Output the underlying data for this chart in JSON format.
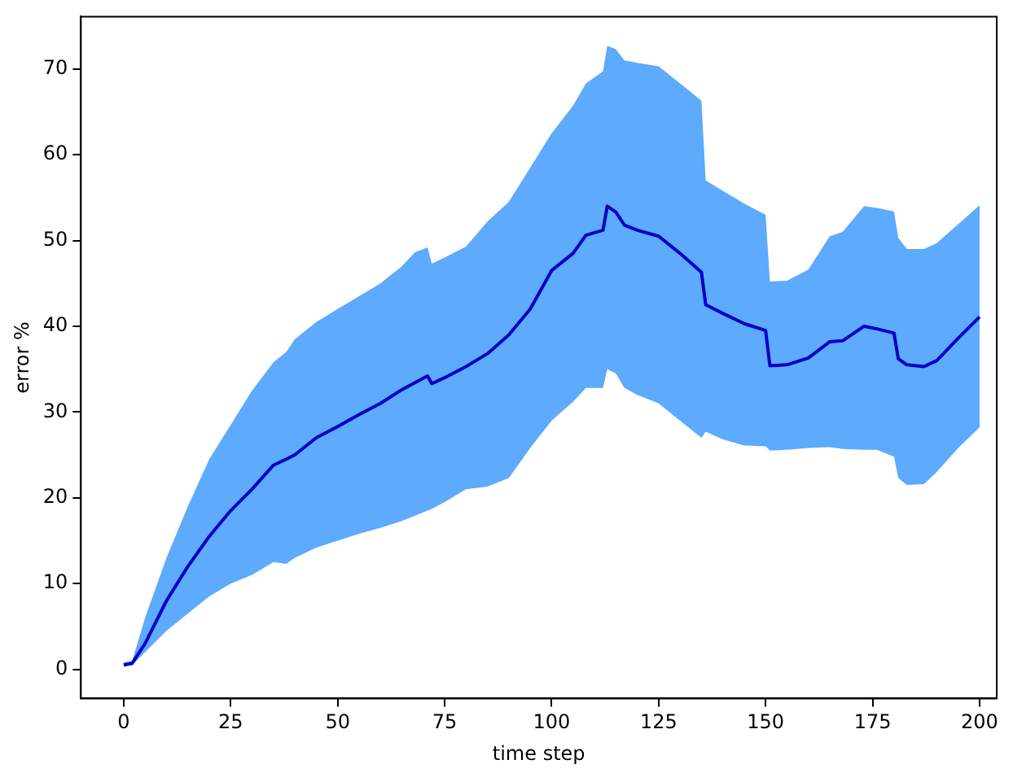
{
  "chart_data": {
    "type": "line",
    "xlabel": "time step",
    "ylabel": "error %",
    "x": [
      0,
      2,
      5,
      10,
      15,
      20,
      25,
      30,
      35,
      38,
      40,
      45,
      50,
      55,
      60,
      65,
      68,
      71,
      72,
      75,
      80,
      85,
      90,
      95,
      100,
      105,
      108,
      112,
      113,
      115,
      117,
      120,
      125,
      130,
      135,
      136,
      140,
      145,
      150,
      151,
      155,
      160,
      165,
      168,
      173,
      176,
      180,
      181,
      183,
      187,
      190,
      195,
      200
    ],
    "series": [
      {
        "color": "#0000c8",
        "values": [
          0.5,
          0.7,
          3,
          8,
          12,
          15.5,
          18.5,
          21,
          23.8,
          24.5,
          25,
          27,
          28.3,
          29.7,
          31,
          32.6,
          33.4,
          34.2,
          33.3,
          34,
          35.3,
          36.8,
          39,
          42,
          46.5,
          48.5,
          50.6,
          51.2,
          54,
          53.3,
          51.8,
          51.2,
          50.5,
          48.5,
          46.3,
          42.5,
          41.5,
          40.3,
          39.5,
          35.4,
          35.5,
          36.3,
          38.2,
          38.3,
          40,
          39.7,
          39.2,
          36.2,
          35.5,
          35.3,
          36,
          38.6,
          41.1
        ],
        "lower": [
          0.4,
          0.5,
          2,
          4.5,
          6.5,
          8.5,
          10,
          11,
          12.5,
          12.3,
          13,
          14.2,
          15,
          15.8,
          16.5,
          17.3,
          17.9,
          18.5,
          18.7,
          19.5,
          21,
          21.3,
          22.3,
          25.8,
          29,
          31.2,
          32.8,
          32.8,
          35,
          34.5,
          32.8,
          32,
          31,
          29,
          27,
          27.7,
          26.8,
          26.1,
          26,
          25.5,
          25.6,
          25.8,
          25.9,
          25.7,
          25.6,
          25.6,
          24.8,
          22.3,
          21.5,
          21.6,
          23,
          25.8,
          28.2
        ],
        "upper": [
          0.8,
          1,
          6,
          13,
          19,
          24.5,
          28.5,
          32.5,
          35.8,
          37,
          38.5,
          40.5,
          42,
          43.5,
          45,
          47,
          48.6,
          49.2,
          47.3,
          48,
          49.3,
          52.2,
          54.5,
          58.5,
          62.5,
          65.7,
          68.3,
          69.7,
          72.7,
          72.3,
          71,
          70.7,
          70.3,
          68.3,
          66.3,
          57,
          55.8,
          54.3,
          53,
          45.2,
          45.3,
          46.6,
          50.5,
          51,
          54,
          53.8,
          53.4,
          50.3,
          49,
          49,
          49.7,
          51.9,
          54.1
        ]
      }
    ],
    "xlim": [
      -10,
      204
    ],
    "ylim": [
      -3.4,
      76.1
    ],
    "xticks": [
      0,
      25,
      50,
      75,
      100,
      125,
      150,
      175,
      200
    ],
    "yticks": [
      0,
      10,
      20,
      30,
      40,
      50,
      60,
      70
    ],
    "grid": false,
    "legend": false,
    "marker": "none",
    "line_style": "solid"
  }
}
